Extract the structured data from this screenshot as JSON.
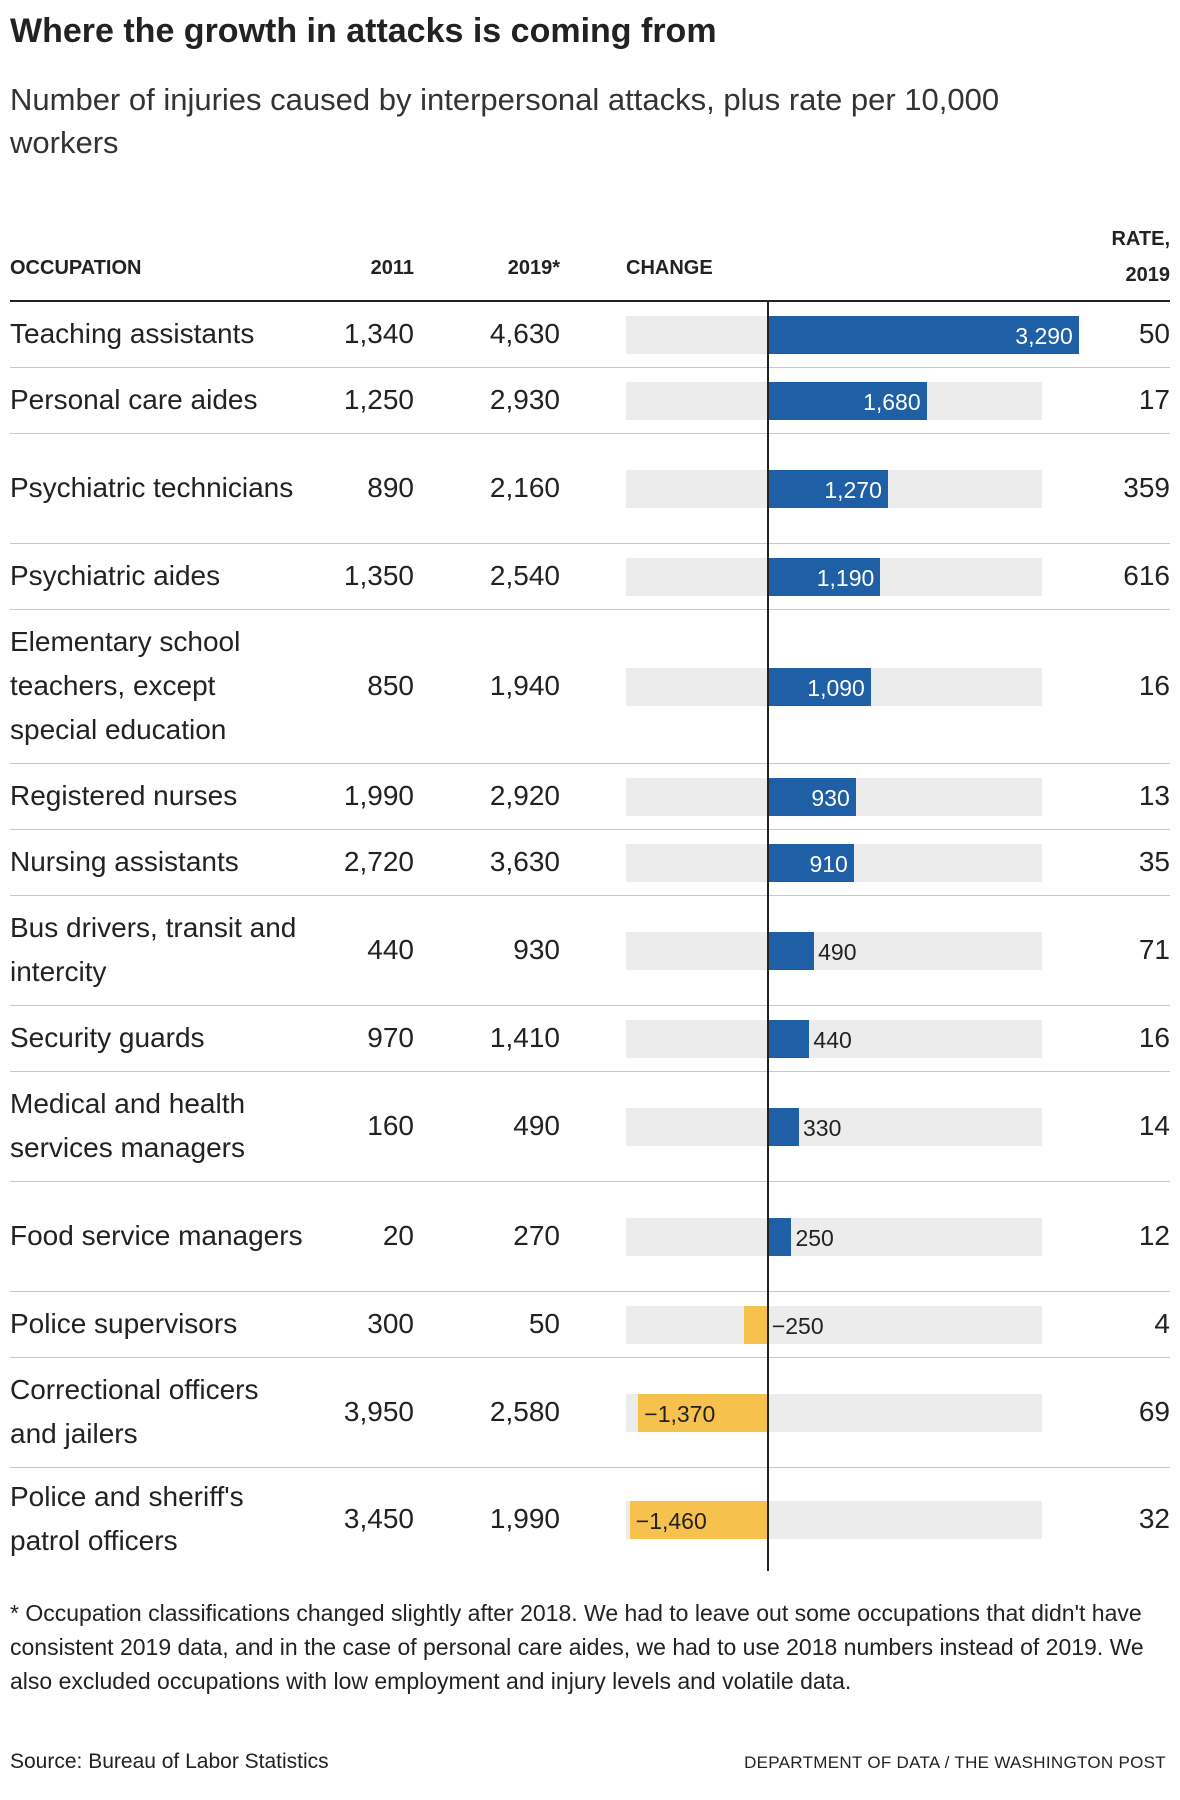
{
  "title": "Where the growth in attacks is coming from",
  "subtitle": "Number of injuries caused by interpersonal attacks, plus rate per 10,000 workers",
  "columns": {
    "occupation": "OCCUPATION",
    "y2011": "2011",
    "y2019": "2019*",
    "change": "CHANGE",
    "rate_line1": "RATE,",
    "rate_line2": "2019"
  },
  "chart_data": {
    "type": "bar",
    "orientation": "horizontal",
    "title": "Where the growth in attacks is coming from",
    "subtitle": "Number of injuries caused by interpersonal attacks, plus rate per 10,000 workers",
    "xlim": [
      -1500,
      2900
    ],
    "colors": {
      "positive": "#1f5fa6",
      "negative": "#f6c14d",
      "track": "#ececec"
    },
    "rows": [
      {
        "occupation": "Teaching assistants",
        "y2011": "1,340",
        "y2019": "4,630",
        "change": 3290,
        "change_label": "3,290",
        "rate": "50"
      },
      {
        "occupation": "Personal care aides",
        "y2011": "1,250",
        "y2019": "2,930",
        "change": 1680,
        "change_label": "1,680",
        "rate": "17"
      },
      {
        "occupation": "Psychiatric technicians",
        "y2011": "890",
        "y2019": "2,160",
        "change": 1270,
        "change_label": "1,270",
        "rate": "359"
      },
      {
        "occupation": "Psychiatric aides",
        "y2011": "1,350",
        "y2019": "2,540",
        "change": 1190,
        "change_label": "1,190",
        "rate": "616"
      },
      {
        "occupation": "Elementary school teachers, except special education",
        "y2011": "850",
        "y2019": "1,940",
        "change": 1090,
        "change_label": "1,090",
        "rate": "16"
      },
      {
        "occupation": "Registered nurses",
        "y2011": "1,990",
        "y2019": "2,920",
        "change": 930,
        "change_label": "930",
        "rate": "13"
      },
      {
        "occupation": "Nursing assistants",
        "y2011": "2,720",
        "y2019": "3,630",
        "change": 910,
        "change_label": "910",
        "rate": "35"
      },
      {
        "occupation": "Bus drivers, transit and intercity",
        "y2011": "440",
        "y2019": "930",
        "change": 490,
        "change_label": "490",
        "rate": "71"
      },
      {
        "occupation": "Security guards",
        "y2011": "970",
        "y2019": "1,410",
        "change": 440,
        "change_label": "440",
        "rate": "16"
      },
      {
        "occupation": "Medical and health services managers",
        "y2011": "160",
        "y2019": "490",
        "change": 330,
        "change_label": "330",
        "rate": "14"
      },
      {
        "occupation": "Food service managers",
        "y2011": "20",
        "y2019": "270",
        "change": 250,
        "change_label": "250",
        "rate": "12"
      },
      {
        "occupation": "Police supervisors",
        "y2011": "300",
        "y2019": "50",
        "change": -250,
        "change_label": "−250",
        "rate": "4"
      },
      {
        "occupation": "Correctional officers and jailers",
        "y2011": "3,950",
        "y2019": "2,580",
        "change": -1370,
        "change_label": "−1,370",
        "rate": "69"
      },
      {
        "occupation": "Police and sheriff's patrol officers",
        "y2011": "3,450",
        "y2019": "1,990",
        "change": -1460,
        "change_label": "−1,460",
        "rate": "32"
      }
    ]
  },
  "footnote": "* Occupation classifications changed slightly after 2018. We had to leave out some occupations that didn't have consistent 2019 data, and in the case of personal care aides, we had to use 2018 numbers instead of 2019. We also excluded occupations with low employment and injury levels and volatile data.",
  "source": "Source: Bureau of Labor Statistics",
  "credit": "DEPARTMENT OF DATA / THE WASHINGTON POST"
}
